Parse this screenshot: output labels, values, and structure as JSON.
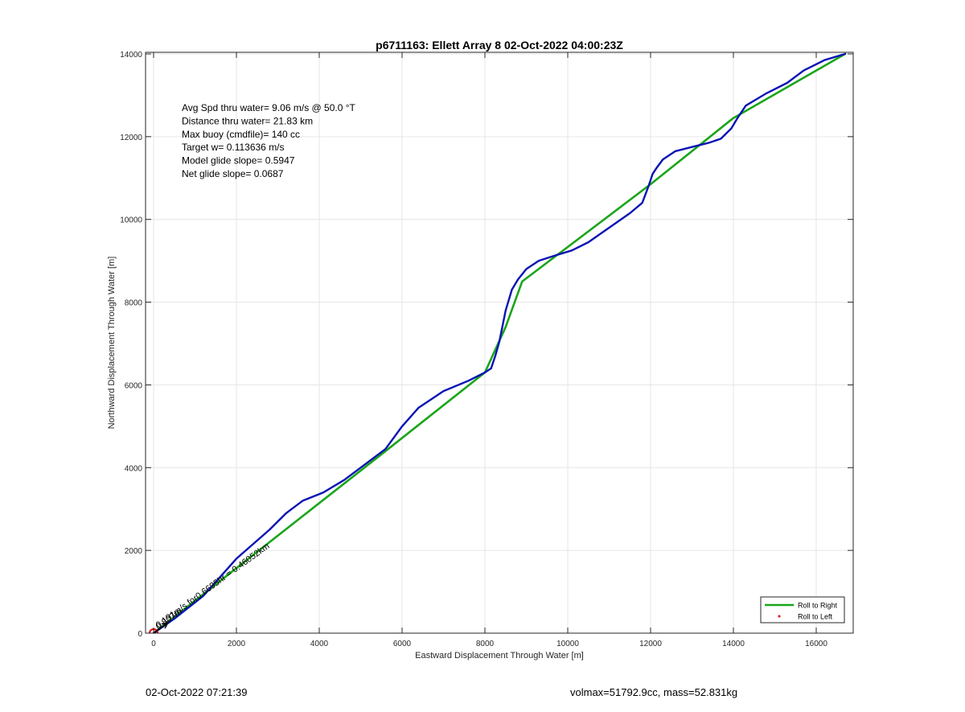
{
  "chart_data": {
    "type": "line",
    "title": "p6711163: Ellett Array 8 02-Oct-2022 04:00:23Z",
    "xlabel": "Eastward Displacement Through Water [m]",
    "ylabel": "Northward Displacement Through Water [m]",
    "xlim": [
      -600,
      17000
    ],
    "ylim": [
      -100,
      14000
    ],
    "xticks": [
      0,
      2000,
      4000,
      6000,
      8000,
      10000,
      12000,
      14000,
      16000
    ],
    "yticks": [
      0,
      2000,
      4000,
      6000,
      8000,
      10000,
      12000,
      14000
    ],
    "xtick_labels": [
      "0",
      "2000",
      "4000",
      "6000",
      "8000",
      "10000",
      "12000",
      "14000",
      "16000"
    ],
    "ytick_labels": [
      "0",
      "2000",
      "4000",
      "6000",
      "8000",
      "10000",
      "12000",
      "14000"
    ],
    "grid": true,
    "legend_position": "bottom-right",
    "legend": [
      {
        "label": "Roll to Right",
        "color": "#1aa51a",
        "marker": "line"
      },
      {
        "label": "Roll to Left",
        "color": "#e60000",
        "marker": "dot"
      }
    ],
    "annotations": [
      "Avg Spd thru water=  9.06 m/s @  50.0 °T",
      "Distance thru water= 21.83 km",
      "Max buoy (cmdfile)= 140 cc",
      "Target w= 0.113636 m/s",
      "Model glide slope= 0.5947",
      "Net glide slope= 0.0687"
    ],
    "arrow_label": "0.191m/s for0.6695hr = 0.46052km",
    "arrow_label_overlay": "0.807m",
    "series": [
      {
        "name": "Roll to Right",
        "color": "#1aa51a",
        "x": [
          0,
          5600,
          8000,
          8500,
          8900,
          12000,
          14000,
          16700
        ],
        "y": [
          0,
          4400,
          6300,
          7400,
          8500,
          10850,
          12450,
          14000
        ]
      },
      {
        "color": "#0a14b4",
        "x": [
          0,
          500,
          1200,
          2000,
          2800,
          3200,
          3600,
          4100,
          4600,
          5200,
          5600,
          6000,
          6400,
          7000,
          7600,
          8000,
          8150,
          8250,
          8350,
          8500,
          8650,
          8800,
          9000,
          9300,
          9700,
          10100,
          10500,
          11000,
          11500,
          11800,
          11950,
          12050,
          12150,
          12300,
          12600,
          13000,
          13400,
          13700,
          13950,
          14100,
          14300,
          14800,
          15300,
          15700,
          16200,
          16700
        ],
        "y": [
          0,
          350,
          900,
          1800,
          2500,
          2900,
          3200,
          3400,
          3700,
          4150,
          4450,
          5000,
          5450,
          5850,
          6100,
          6300,
          6400,
          6700,
          7050,
          7800,
          8300,
          8550,
          8800,
          9000,
          9130,
          9250,
          9450,
          9800,
          10150,
          10400,
          10800,
          11100,
          11250,
          11450,
          11650,
          11750,
          11850,
          11950,
          12200,
          12450,
          12750,
          13050,
          13300,
          13600,
          13850,
          14000
        ]
      }
    ],
    "start_marker": {
      "x": 0,
      "y": 0,
      "color": "#e60000"
    }
  },
  "footer": {
    "left": "02-Oct-2022 07:21:39",
    "right": "volmax=51792.9cc, mass=52.831kg"
  }
}
